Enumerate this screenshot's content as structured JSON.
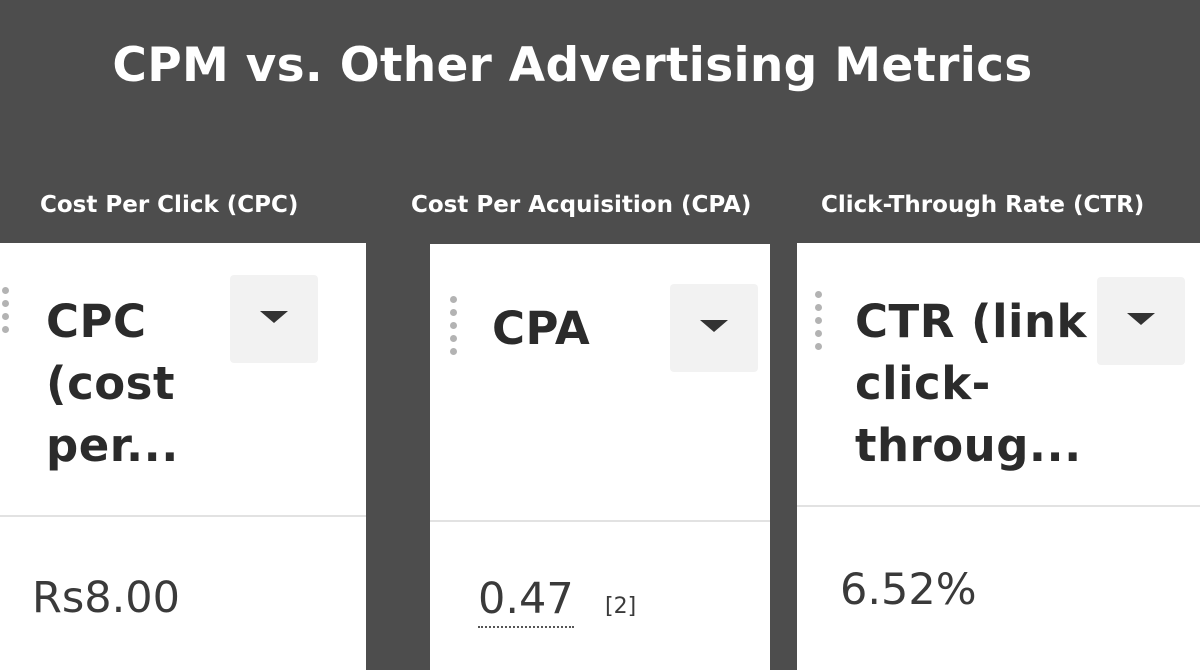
{
  "title": "CPM vs. Other Advertising Metrics",
  "columns": [
    {
      "label": "Cost Per Click (CPC)",
      "header_lines": [
        "CPC",
        "(cost",
        "per..."
      ],
      "value": "Rs8.00",
      "footnote": "",
      "dropdown_icon": "caret-down-icon"
    },
    {
      "label": "Cost Per Acquisition (CPA)",
      "header_lines": [
        "CPA"
      ],
      "value": "0.47",
      "footnote": "[2]",
      "dropdown_icon": "caret-down-icon"
    },
    {
      "label": "Click-Through Rate (CTR)",
      "header_lines": [
        "CTR (link",
        "click-",
        "throug..."
      ],
      "value": "6.52%",
      "footnote": "",
      "dropdown_icon": "caret-down-icon"
    }
  ],
  "colors": {
    "background": "#4d4d4d",
    "card": "#ffffff",
    "text": "#2b2b2b"
  }
}
